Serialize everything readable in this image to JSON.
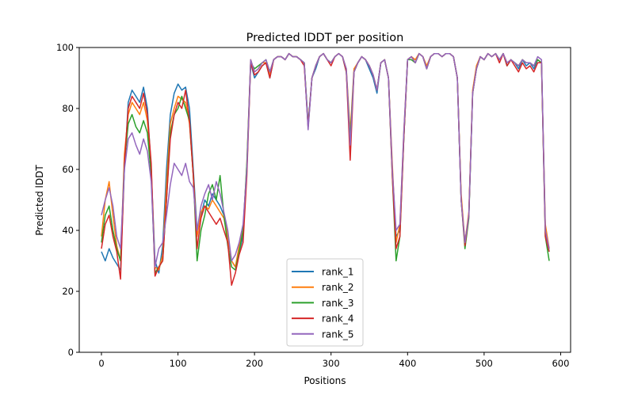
{
  "chart_data": {
    "type": "line",
    "title": "Predicted lDDT per position",
    "xlabel": "Positions",
    "ylabel": "Predicted lDDT",
    "xlim": [
      -29,
      613
    ],
    "ylim": [
      0,
      100
    ],
    "xticks": [
      0,
      100,
      200,
      300,
      400,
      500,
      600
    ],
    "yticks": [
      0,
      20,
      40,
      60,
      80,
      100
    ],
    "grid": false,
    "legend_position": "lower-center",
    "x_start": 0,
    "x_step": 5,
    "series": [
      {
        "name": "rank_1",
        "color": "#1f77b4",
        "values": [
          33,
          30,
          34,
          31,
          29,
          27,
          60,
          82,
          86,
          84,
          82,
          87,
          80,
          60,
          30,
          26,
          35,
          60,
          78,
          85,
          88,
          86,
          87,
          80,
          60,
          40,
          45,
          50,
          48,
          52,
          50,
          48,
          45,
          38,
          30,
          28,
          33,
          38,
          60,
          95,
          90,
          92,
          94,
          95,
          90,
          96,
          97,
          97,
          96,
          98,
          97,
          97,
          96,
          95,
          75,
          90,
          93,
          97,
          98,
          96,
          95,
          97,
          98,
          97,
          92,
          70,
          92,
          95,
          97,
          96,
          93,
          90,
          85,
          95,
          96,
          90,
          60,
          38,
          40,
          70,
          96,
          97,
          95,
          98,
          97,
          93,
          97,
          98,
          98,
          97,
          98,
          98,
          97,
          90,
          50,
          36,
          45,
          85,
          93,
          97,
          96,
          98,
          97,
          98,
          96,
          98,
          94,
          96,
          95,
          93,
          96,
          94,
          95,
          93,
          96,
          95,
          40,
          33
        ]
      },
      {
        "name": "rank_2",
        "color": "#ff7f0e",
        "values": [
          38,
          50,
          56,
          45,
          35,
          30,
          65,
          78,
          82,
          80,
          78,
          82,
          76,
          60,
          28,
          27,
          32,
          55,
          75,
          80,
          84,
          83,
          82,
          75,
          58,
          38,
          46,
          48,
          47,
          50,
          48,
          46,
          44,
          38,
          30,
          28,
          35,
          40,
          62,
          96,
          92,
          93,
          95,
          95,
          91,
          96,
          97,
          97,
          96,
          98,
          97,
          97,
          96,
          95,
          74,
          90,
          94,
          97,
          98,
          96,
          95,
          97,
          98,
          97,
          93,
          72,
          93,
          95,
          97,
          96,
          94,
          91,
          86,
          95,
          96,
          90,
          62,
          36,
          42,
          72,
          96,
          97,
          96,
          98,
          97,
          94,
          97,
          98,
          98,
          97,
          98,
          98,
          97,
          90,
          52,
          36,
          46,
          86,
          94,
          97,
          96,
          98,
          97,
          98,
          96,
          98,
          95,
          96,
          95,
          94,
          96,
          95,
          95,
          94,
          96,
          95,
          42,
          34
        ]
      },
      {
        "name": "rank_3",
        "color": "#2ca02c",
        "values": [
          36,
          45,
          48,
          40,
          34,
          30,
          62,
          75,
          78,
          74,
          72,
          76,
          72,
          58,
          26,
          28,
          30,
          50,
          72,
          78,
          80,
          84,
          80,
          76,
          58,
          30,
          40,
          45,
          52,
          55,
          50,
          58,
          45,
          35,
          28,
          27,
          33,
          40,
          62,
          95,
          93,
          94,
          95,
          96,
          92,
          96,
          97,
          97,
          96,
          98,
          97,
          97,
          96,
          95,
          74,
          90,
          94,
          97,
          98,
          96,
          95,
          97,
          98,
          97,
          92,
          70,
          92,
          95,
          97,
          96,
          94,
          91,
          86,
          95,
          96,
          90,
          58,
          30,
          38,
          70,
          96,
          96,
          95,
          98,
          97,
          93,
          97,
          98,
          98,
          97,
          98,
          98,
          97,
          90,
          50,
          34,
          44,
          85,
          93,
          97,
          96,
          98,
          97,
          98,
          96,
          98,
          94,
          96,
          95,
          94,
          96,
          95,
          95,
          94,
          96,
          95,
          38,
          30
        ]
      },
      {
        "name": "rank_4",
        "color": "#d62728",
        "values": [
          34,
          42,
          45,
          38,
          33,
          24,
          62,
          80,
          84,
          82,
          80,
          85,
          78,
          62,
          25,
          28,
          30,
          50,
          70,
          78,
          82,
          80,
          86,
          76,
          58,
          34,
          44,
          48,
          46,
          44,
          42,
          44,
          40,
          36,
          22,
          26,
          32,
          36,
          58,
          95,
          91,
          92,
          94,
          95,
          90,
          96,
          97,
          97,
          96,
          98,
          97,
          97,
          96,
          94,
          74,
          90,
          94,
          97,
          98,
          96,
          94,
          97,
          98,
          97,
          92,
          63,
          92,
          95,
          97,
          96,
          94,
          91,
          86,
          95,
          96,
          90,
          58,
          34,
          38,
          70,
          96,
          97,
          95,
          98,
          97,
          93,
          97,
          98,
          98,
          97,
          98,
          98,
          97,
          90,
          50,
          35,
          45,
          85,
          93,
          97,
          96,
          98,
          97,
          98,
          95,
          98,
          94,
          96,
          94,
          92,
          95,
          93,
          94,
          92,
          95,
          95,
          38,
          33
        ]
      },
      {
        "name": "rank_5",
        "color": "#9467bd",
        "values": [
          45,
          50,
          54,
          48,
          38,
          34,
          60,
          70,
          72,
          68,
          65,
          70,
          66,
          56,
          28,
          34,
          36,
          45,
          55,
          62,
          60,
          58,
          62,
          56,
          54,
          40,
          48,
          52,
          55,
          50,
          56,
          52,
          46,
          40,
          30,
          32,
          36,
          42,
          60,
          96,
          92,
          93,
          95,
          96,
          92,
          96,
          97,
          97,
          96,
          98,
          97,
          97,
          96,
          95,
          73,
          90,
          94,
          97,
          98,
          96,
          95,
          97,
          98,
          97,
          93,
          68,
          92,
          95,
          97,
          96,
          94,
          91,
          86,
          95,
          96,
          90,
          60,
          40,
          42,
          72,
          96,
          97,
          95,
          98,
          97,
          93,
          97,
          98,
          98,
          97,
          98,
          98,
          97,
          90,
          50,
          36,
          45,
          85,
          93,
          97,
          96,
          98,
          97,
          98,
          96,
          98,
          95,
          96,
          95,
          94,
          96,
          95,
          95,
          94,
          97,
          96,
          40,
          34
        ]
      }
    ]
  }
}
